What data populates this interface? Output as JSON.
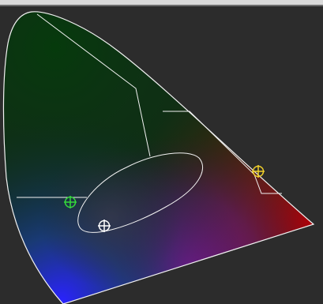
{
  "window": {
    "title": "",
    "colors": {
      "background": "#2c2c2c",
      "topbar": "#d9d9d9",
      "outline": "#f2f2f2",
      "marker_white": "#ffffff",
      "marker_green": "#35d93b",
      "marker_yellow": "#f0cf2a"
    }
  },
  "diagram": {
    "type": "chromaticity-diagram",
    "markers": [
      {
        "name": "green-marker",
        "icon": "crosshair-circle-icon",
        "color": "#35d93b"
      },
      {
        "name": "yellow-marker",
        "icon": "crosshair-circle-icon",
        "color": "#f0cf2a"
      },
      {
        "name": "white-marker",
        "icon": "crosshair-circle-icon",
        "color": "#ffffff"
      }
    ]
  }
}
